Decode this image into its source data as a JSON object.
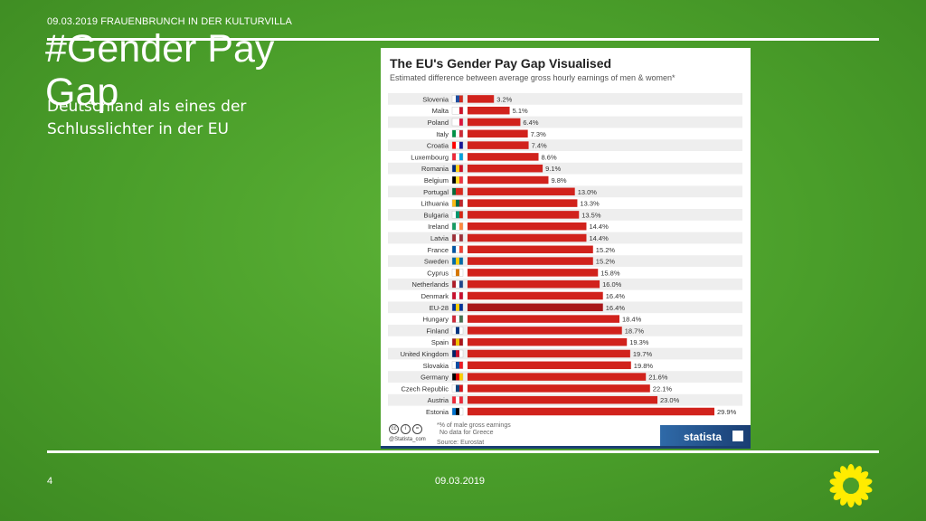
{
  "slide": {
    "header": "09.03.2019 FRAUENBRUNCH IN DER KULTURVILLA",
    "title": "#Gender Pay Gap",
    "subtitle": "Deutschland als eines der Schlusslichter in der EU",
    "page_number": "4",
    "footer_date": "09.03.2019"
  },
  "colors": {
    "background": "#4a9e2a",
    "bar": "#d1221c",
    "bar_eu28": "#a8171a",
    "row_stripe": "#eeeeee"
  },
  "card": {
    "title": "The EU's Gender Pay Gap Visualised",
    "subtitle": "Estimated difference between average gross hourly earnings of men & women*",
    "footnote_1": "*% of male gross earnings",
    "footnote_2": "No data for Greece",
    "source": "Source: Eurostat",
    "brand": "statista",
    "cc_url": "@Statista_com"
  },
  "chart_data": {
    "type": "bar",
    "orientation": "horizontal",
    "title": "The EU's Gender Pay Gap Visualised",
    "subtitle": "Estimated difference between average gross hourly earnings of men & women*",
    "categories": [
      "Slovenia",
      "Malta",
      "Poland",
      "Italy",
      "Croatia",
      "Luxembourg",
      "Romania",
      "Belgium",
      "Portugal",
      "Lithuania",
      "Bulgaria",
      "Ireland",
      "Latvia",
      "France",
      "Sweden",
      "Cyprus",
      "Netherlands",
      "Denmark",
      "EU-28",
      "Hungary",
      "Finland",
      "Spain",
      "United Kingdom",
      "Slovakia",
      "Germany",
      "Czech Republic",
      "Austria",
      "Estonia"
    ],
    "values": [
      3.2,
      5.1,
      6.4,
      7.3,
      7.4,
      8.6,
      9.1,
      9.8,
      13.0,
      13.3,
      13.5,
      14.4,
      14.4,
      15.2,
      15.2,
      15.8,
      16.0,
      16.4,
      16.4,
      18.4,
      18.7,
      19.3,
      19.7,
      19.8,
      21.6,
      22.1,
      23.0,
      29.9
    ],
    "labels": [
      "3.2%",
      "5.1%",
      "6.4%",
      "7.3%",
      "7.4%",
      "8.6%",
      "9.1%",
      "9.8%",
      "13.0%",
      "13.3%",
      "13.5%",
      "14.4%",
      "14.4%",
      "15.2%",
      "15.2%",
      "15.8%",
      "16.0%",
      "16.4%",
      "16.4%",
      "18.4%",
      "18.7%",
      "19.3%",
      "19.7%",
      "19.8%",
      "21.6%",
      "22.1%",
      "23.0%",
      "29.9%"
    ],
    "flags": [
      [
        "#ffffff",
        "#1f4fa0",
        "#d52b1e"
      ],
      [
        "#ffffff",
        "#ffffff",
        "#cf142b"
      ],
      [
        "#ffffff",
        "#ffffff",
        "#dc143c"
      ],
      [
        "#009246",
        "#ffffff",
        "#ce2b37"
      ],
      [
        "#ff0000",
        "#ffffff",
        "#171796"
      ],
      [
        "#ed2939",
        "#ffffff",
        "#00a1de"
      ],
      [
        "#002b7f",
        "#fcd116",
        "#ce1126"
      ],
      [
        "#000000",
        "#fdda24",
        "#ef3340"
      ],
      [
        "#046a38",
        "#da291c",
        "#da291c"
      ],
      [
        "#fdb913",
        "#006a44",
        "#c1272d"
      ],
      [
        "#ffffff",
        "#00966e",
        "#d62612"
      ],
      [
        "#169b62",
        "#ffffff",
        "#ff883e"
      ],
      [
        "#9e3039",
        "#ffffff",
        "#9e3039"
      ],
      [
        "#0055a4",
        "#ffffff",
        "#ef4135"
      ],
      [
        "#006aa7",
        "#fecc00",
        "#006aa7"
      ],
      [
        "#ffffff",
        "#d57800",
        "#ffffff"
      ],
      [
        "#ae1c28",
        "#ffffff",
        "#21468b"
      ],
      [
        "#c8102e",
        "#ffffff",
        "#c8102e"
      ],
      [
        "#003399",
        "#ffcc00",
        "#003399"
      ],
      [
        "#ce2939",
        "#ffffff",
        "#477050"
      ],
      [
        "#ffffff",
        "#003580",
        "#ffffff"
      ],
      [
        "#aa151b",
        "#f1bf00",
        "#aa151b"
      ],
      [
        "#012169",
        "#c8102e",
        "#ffffff"
      ],
      [
        "#ffffff",
        "#0b4ea2",
        "#ee1c25"
      ],
      [
        "#000000",
        "#dd0000",
        "#ffce00"
      ],
      [
        "#ffffff",
        "#11457e",
        "#d7141a"
      ],
      [
        "#ed2939",
        "#ffffff",
        "#ed2939"
      ],
      [
        "#0072ce",
        "#000000",
        "#ffffff"
      ]
    ],
    "xlim": [
      0,
      29.9
    ],
    "grid": false,
    "legend": "none"
  }
}
